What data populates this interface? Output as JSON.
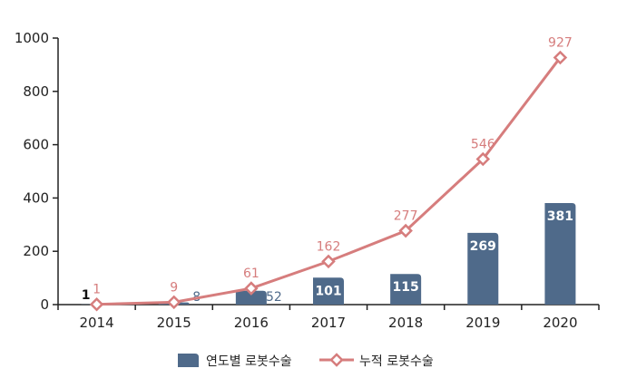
{
  "chart_data": {
    "type": "bar",
    "categories": [
      "2014",
      "2015",
      "2016",
      "2017",
      "2018",
      "2019",
      "2020"
    ],
    "series": [
      {
        "name": "연도별 로봇수술",
        "type": "bar",
        "values": [
          1,
          8,
          52,
          101,
          115,
          269,
          381
        ],
        "color": "#4f6a8a"
      },
      {
        "name": "누적 로봇수술",
        "type": "line",
        "values": [
          1,
          9,
          61,
          162,
          277,
          546,
          927
        ],
        "color": "#d67d7d"
      }
    ],
    "y_ticks": [
      "0",
      "200",
      "400",
      "600",
      "800",
      "1000"
    ],
    "ylim": [
      0,
      1000
    ],
    "grid": false,
    "legend_position": "bottom"
  }
}
